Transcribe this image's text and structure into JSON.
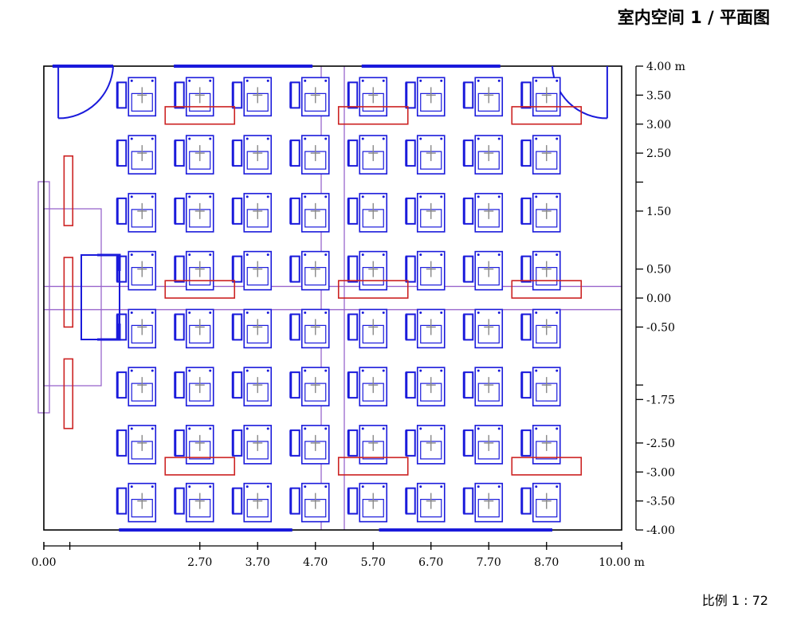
{
  "header": {
    "title": "室内空间 1 / 平面图"
  },
  "footer": {
    "scale": "比例 1 : 72"
  },
  "colors": {
    "walls": "#000000",
    "furniture": "#1a1adb",
    "lamps": "#cc2222",
    "guides": "#9966cc",
    "ticks": "#888888"
  },
  "chart_data": {
    "type": "floor-plan",
    "units": "m",
    "x_axis": {
      "range": [
        0.0,
        10.0
      ],
      "unit_label": "m",
      "ticks": [
        0.0,
        2.7,
        3.7,
        4.7,
        5.7,
        6.7,
        7.7,
        8.7,
        10.0
      ],
      "tick_labels": [
        "0.00",
        "2.70",
        "3.70",
        "4.70",
        "5.70",
        "6.70",
        "7.70",
        "8.70",
        "10.00 m"
      ]
    },
    "y_axis": {
      "range": [
        -4.0,
        4.0
      ],
      "unit_label": "m",
      "ticks": [
        4.0,
        3.5,
        3.0,
        2.5,
        1.5,
        0.5,
        0.0,
        -0.5,
        -1.75,
        -2.5,
        -3.0,
        -3.5,
        -4.0
      ],
      "tick_labels": [
        "4.00 m",
        "3.50",
        "3.00",
        "2.50",
        "1.50",
        "0.50",
        "0.00",
        "-0.50",
        "-1.75",
        "-2.50",
        "-3.00",
        "-3.50",
        "-4.00"
      ]
    },
    "seat_grid": {
      "rows": 8,
      "columns": 8,
      "row_y": [
        3.5,
        2.5,
        1.5,
        0.5,
        -0.5,
        -1.5,
        -2.5,
        -3.5
      ],
      "column_x": [
        1.7,
        2.7,
        3.7,
        4.7,
        5.7,
        6.7,
        7.7,
        8.7
      ]
    },
    "lamps": [
      {
        "x": [
          2.1,
          3.3
        ],
        "y": [
          3.3,
          3.0
        ]
      },
      {
        "x": [
          5.1,
          6.3
        ],
        "y": [
          3.3,
          3.0
        ]
      },
      {
        "x": [
          8.1,
          9.3
        ],
        "y": [
          3.3,
          3.0
        ]
      },
      {
        "x": [
          2.1,
          3.3
        ],
        "y": [
          0.3,
          0.0
        ]
      },
      {
        "x": [
          5.1,
          6.3
        ],
        "y": [
          0.3,
          0.0
        ]
      },
      {
        "x": [
          8.1,
          9.3
        ],
        "y": [
          0.3,
          0.0
        ]
      },
      {
        "x": [
          2.1,
          3.3
        ],
        "y": [
          -2.75,
          -3.05
        ]
      },
      {
        "x": [
          5.1,
          6.3
        ],
        "y": [
          -2.75,
          -3.05
        ]
      },
      {
        "x": [
          8.1,
          9.3
        ],
        "y": [
          -2.75,
          -3.05
        ]
      },
      {
        "x": [
          0.35,
          0.5
        ],
        "y": [
          2.45,
          1.25
        ]
      },
      {
        "x": [
          0.35,
          0.5
        ],
        "y": [
          0.7,
          -0.5
        ]
      },
      {
        "x": [
          0.35,
          0.5
        ],
        "y": [
          -1.05,
          -2.25
        ]
      }
    ],
    "doors": [
      {
        "hinge_x": 0.25,
        "y_top": 4.0,
        "radius": 0.95,
        "side": "left"
      },
      {
        "hinge_x": 9.75,
        "y_top": 4.0,
        "radius": 0.95,
        "side": "right"
      }
    ],
    "windows": {
      "top": [
        [
          0.15,
          1.2
        ],
        [
          2.25,
          4.65
        ],
        [
          5.5,
          7.9
        ]
      ],
      "bottom": [
        [
          1.3,
          4.3
        ],
        [
          5.8,
          8.8
        ]
      ]
    },
    "guides": {
      "vertical_x": [
        4.8,
        5.2
      ],
      "horizontal_y": [
        0.2,
        -0.2
      ]
    }
  }
}
